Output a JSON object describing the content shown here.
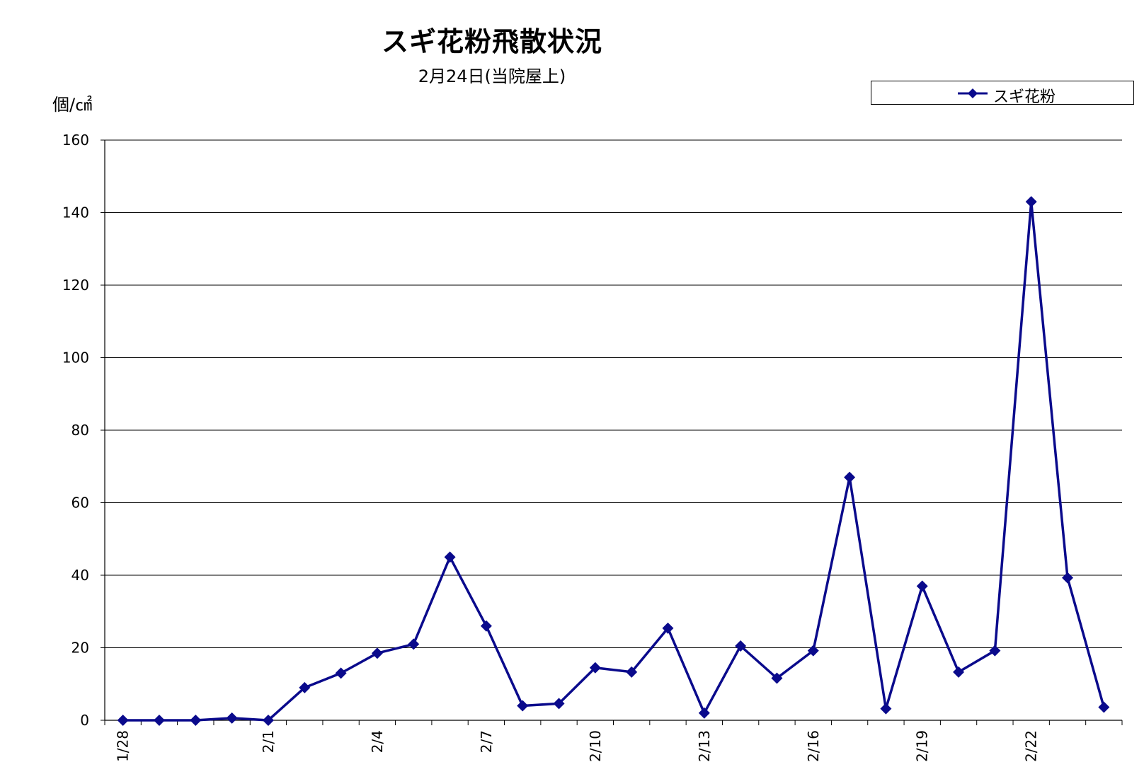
{
  "chart_data": {
    "type": "line",
    "title": "スギ花粉飛散状況",
    "subtitle": "2月24日(当院屋上)",
    "ylabel": "個/㎠",
    "ylim": [
      0,
      160
    ],
    "yticks": [
      0,
      20,
      40,
      60,
      80,
      100,
      120,
      140,
      160
    ],
    "grid": true,
    "legend_position": "top-right",
    "x": [
      "1/28",
      "1/29",
      "1/30",
      "1/31",
      "2/1",
      "2/2",
      "2/3",
      "2/4",
      "2/5",
      "2/6",
      "2/7",
      "2/8",
      "2/9",
      "2/10",
      "2/11",
      "2/12",
      "2/13",
      "2/14",
      "2/15",
      "2/16",
      "2/17",
      "2/18",
      "2/19",
      "2/20",
      "2/21",
      "2/22",
      "2/23",
      "2/24"
    ],
    "xtick_labels": [
      "1/28",
      "2/1",
      "2/4",
      "2/7",
      "2/10",
      "2/13",
      "2/16",
      "2/19",
      "2/22"
    ],
    "series": [
      {
        "name": "スギ花粉",
        "color": "#0a0a8c",
        "marker": "diamond",
        "values": [
          0,
          0,
          0,
          0.6,
          0,
          9,
          13,
          18.5,
          21,
          45,
          26,
          4,
          4.6,
          14.5,
          13.3,
          25.4,
          2,
          20.5,
          11.6,
          19.2,
          67,
          3.2,
          37,
          13.3,
          19.2,
          143,
          39.3,
          3.6
        ]
      }
    ]
  }
}
